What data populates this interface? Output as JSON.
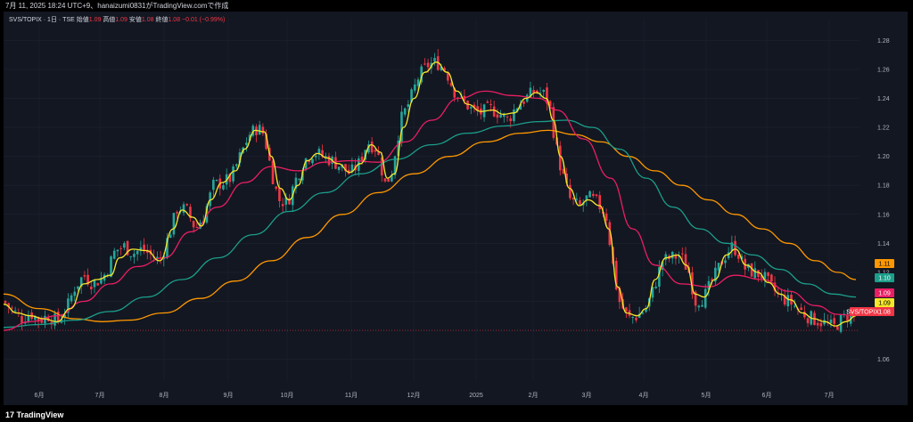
{
  "header": {
    "info_text": "7月 11, 2025 18:24 UTC+9、hanaizumi0831がTradingView.comで作成"
  },
  "legend": {
    "symbol": "SVS/TOPIX · 1日 · TSE",
    "open_label": "始値",
    "open_value": "1.09",
    "high_label": "高値",
    "high_value": "1.09",
    "low_label": "安値",
    "low_value": "1.08",
    "close_label": "終値",
    "close_value": "1.08",
    "change": "−0.01 (−0.99%)"
  },
  "footer": {
    "brand": "TradingView",
    "logo_mark": "17"
  },
  "colors": {
    "up": "#26a69a",
    "down": "#f23645",
    "ma_yellow": "#f5e72a",
    "ma_pink": "#e91e63",
    "ma_teal": "#1b9e8a",
    "ma_orange": "#ff9800",
    "bg": "#131722",
    "grid": "#1e2330"
  },
  "price_labels": [
    {
      "text": "1.11",
      "bg": "#ff9800",
      "fg": "#000000",
      "value": 1.11
    },
    {
      "text": "1.10",
      "bg": "#1b9e8a",
      "fg": "#ffffff",
      "value": 1.1
    },
    {
      "text": "1.09",
      "bg": "#e91e63",
      "fg": "#ffffff",
      "value": 1.09
    },
    {
      "text": "1.09",
      "bg": "#f5e72a",
      "fg": "#000000",
      "value": 1.086
    },
    {
      "text": "1.08",
      "bg": "#f23645",
      "fg": "#ffffff",
      "value": 1.08
    }
  ],
  "symbol_tag": "SVS/TOPIX",
  "chart_data": {
    "type": "candlestick",
    "y_axis": {
      "ticks": [
        "1.28",
        "1.26",
        "1.24",
        "1.22",
        "1.20",
        "1.18",
        "1.16",
        "1.14",
        "1.12",
        "1.10",
        "1.06"
      ],
      "range": [
        1.045,
        1.295
      ]
    },
    "x_axis": {
      "ticks": [
        "6月",
        "7月",
        "8月",
        "9月",
        "10月",
        "11月",
        "12月",
        "2025",
        "2月",
        "3月",
        "4月",
        "5月",
        "6月",
        "7月"
      ]
    },
    "close_path": [
      [
        0,
        1.1
      ],
      [
        10,
        1.094
      ],
      [
        20,
        1.088
      ],
      [
        30,
        1.092
      ],
      [
        40,
        1.087
      ],
      [
        50,
        1.09
      ],
      [
        60,
        1.086
      ],
      [
        70,
        1.094
      ],
      [
        80,
        1.11
      ],
      [
        90,
        1.118
      ],
      [
        100,
        1.112
      ],
      [
        110,
        1.116
      ],
      [
        115,
        1.12
      ],
      [
        125,
        1.135
      ],
      [
        135,
        1.138
      ],
      [
        145,
        1.133
      ],
      [
        155,
        1.136
      ],
      [
        165,
        1.132
      ],
      [
        175,
        1.128
      ],
      [
        185,
        1.145
      ],
      [
        195,
        1.165
      ],
      [
        205,
        1.163
      ],
      [
        215,
        1.15
      ],
      [
        225,
        1.16
      ],
      [
        235,
        1.18
      ],
      [
        245,
        1.182
      ],
      [
        255,
        1.185
      ],
      [
        265,
        1.2
      ],
      [
        275,
        1.215
      ],
      [
        285,
        1.22
      ],
      [
        292,
        1.215
      ],
      [
        300,
        1.19
      ],
      [
        308,
        1.17
      ],
      [
        318,
        1.168
      ],
      [
        328,
        1.185
      ],
      [
        338,
        1.198
      ],
      [
        348,
        1.203
      ],
      [
        358,
        1.2
      ],
      [
        368,
        1.197
      ],
      [
        378,
        1.193
      ],
      [
        388,
        1.188
      ],
      [
        398,
        1.195
      ],
      [
        408,
        1.21
      ],
      [
        418,
        1.205
      ],
      [
        428,
        1.18
      ],
      [
        435,
        1.19
      ],
      [
        445,
        1.225
      ],
      [
        455,
        1.238
      ],
      [
        465,
        1.255
      ],
      [
        475,
        1.263
      ],
      [
        485,
        1.265
      ],
      [
        495,
        1.26
      ],
      [
        505,
        1.245
      ],
      [
        515,
        1.238
      ],
      [
        525,
        1.232
      ],
      [
        535,
        1.23
      ],
      [
        545,
        1.233
      ],
      [
        555,
        1.23
      ],
      [
        565,
        1.225
      ],
      [
        575,
        1.235
      ],
      [
        585,
        1.24
      ],
      [
        595,
        1.245
      ],
      [
        605,
        1.243
      ],
      [
        612,
        1.235
      ],
      [
        618,
        1.21
      ],
      [
        625,
        1.19
      ],
      [
        635,
        1.17
      ],
      [
        645,
        1.165
      ],
      [
        655,
        1.172
      ],
      [
        665,
        1.168
      ],
      [
        675,
        1.16
      ],
      [
        685,
        1.115
      ],
      [
        690,
        1.1
      ],
      [
        700,
        1.088
      ],
      [
        710,
        1.09
      ],
      [
        720,
        1.095
      ],
      [
        728,
        1.108
      ],
      [
        738,
        1.128
      ],
      [
        748,
        1.13
      ],
      [
        758,
        1.132
      ],
      [
        768,
        1.12
      ],
      [
        775,
        1.1
      ],
      [
        785,
        1.103
      ],
      [
        795,
        1.115
      ],
      [
        805,
        1.128
      ],
      [
        815,
        1.138
      ],
      [
        822,
        1.135
      ],
      [
        830,
        1.123
      ],
      [
        840,
        1.12
      ],
      [
        850,
        1.118
      ],
      [
        860,
        1.11
      ],
      [
        870,
        1.103
      ],
      [
        880,
        1.1
      ],
      [
        890,
        1.095
      ],
      [
        900,
        1.09
      ],
      [
        910,
        1.087
      ],
      [
        920,
        1.085
      ],
      [
        930,
        1.082
      ],
      [
        940,
        1.088
      ],
      [
        950,
        1.092
      ],
      [
        955,
        1.088
      ]
    ],
    "ma_yellow": [
      [
        0,
        1.098
      ],
      [
        15,
        1.092
      ],
      [
        30,
        1.09
      ],
      [
        45,
        1.088
      ],
      [
        60,
        1.086
      ],
      [
        75,
        1.095
      ],
      [
        90,
        1.112
      ],
      [
        105,
        1.115
      ],
      [
        120,
        1.118
      ],
      [
        130,
        1.13
      ],
      [
        145,
        1.136
      ],
      [
        160,
        1.135
      ],
      [
        175,
        1.128
      ],
      [
        190,
        1.15
      ],
      [
        200,
        1.163
      ],
      [
        212,
        1.158
      ],
      [
        222,
        1.152
      ],
      [
        232,
        1.17
      ],
      [
        245,
        1.182
      ],
      [
        260,
        1.19
      ],
      [
        270,
        1.205
      ],
      [
        282,
        1.218
      ],
      [
        292,
        1.217
      ],
      [
        300,
        1.2
      ],
      [
        310,
        1.178
      ],
      [
        320,
        1.17
      ],
      [
        330,
        1.18
      ],
      [
        340,
        1.197
      ],
      [
        352,
        1.202
      ],
      [
        362,
        1.199
      ],
      [
        375,
        1.195
      ],
      [
        388,
        1.189
      ],
      [
        400,
        1.195
      ],
      [
        412,
        1.208
      ],
      [
        422,
        1.203
      ],
      [
        430,
        1.185
      ],
      [
        438,
        1.188
      ],
      [
        448,
        1.22
      ],
      [
        460,
        1.24
      ],
      [
        472,
        1.258
      ],
      [
        485,
        1.265
      ],
      [
        497,
        1.258
      ],
      [
        508,
        1.245
      ],
      [
        520,
        1.236
      ],
      [
        535,
        1.231
      ],
      [
        548,
        1.232
      ],
      [
        560,
        1.229
      ],
      [
        572,
        1.23
      ],
      [
        585,
        1.24
      ],
      [
        597,
        1.244
      ],
      [
        608,
        1.24
      ],
      [
        616,
        1.225
      ],
      [
        624,
        1.2
      ],
      [
        634,
        1.178
      ],
      [
        645,
        1.166
      ],
      [
        655,
        1.17
      ],
      [
        668,
        1.166
      ],
      [
        678,
        1.15
      ],
      [
        688,
        1.11
      ],
      [
        698,
        1.092
      ],
      [
        710,
        1.09
      ],
      [
        720,
        1.095
      ],
      [
        730,
        1.115
      ],
      [
        742,
        1.13
      ],
      [
        755,
        1.132
      ],
      [
        765,
        1.125
      ],
      [
        775,
        1.105
      ],
      [
        785,
        1.103
      ],
      [
        797,
        1.115
      ],
      [
        810,
        1.132
      ],
      [
        820,
        1.136
      ],
      [
        832,
        1.125
      ],
      [
        845,
        1.12
      ],
      [
        857,
        1.113
      ],
      [
        870,
        1.105
      ],
      [
        882,
        1.101
      ],
      [
        895,
        1.092
      ],
      [
        908,
        1.088
      ],
      [
        920,
        1.086
      ],
      [
        932,
        1.083
      ],
      [
        944,
        1.086
      ],
      [
        955,
        1.09
      ]
    ],
    "ma_pink": [
      [
        0,
        1.08
      ],
      [
        30,
        1.086
      ],
      [
        60,
        1.09
      ],
      [
        90,
        1.1
      ],
      [
        120,
        1.112
      ],
      [
        150,
        1.124
      ],
      [
        180,
        1.13
      ],
      [
        210,
        1.148
      ],
      [
        240,
        1.165
      ],
      [
        270,
        1.182
      ],
      [
        300,
        1.193
      ],
      [
        330,
        1.19
      ],
      [
        360,
        1.196
      ],
      [
        390,
        1.197
      ],
      [
        420,
        1.196
      ],
      [
        450,
        1.21
      ],
      [
        480,
        1.225
      ],
      [
        510,
        1.24
      ],
      [
        540,
        1.245
      ],
      [
        570,
        1.242
      ],
      [
        600,
        1.24
      ],
      [
        620,
        1.232
      ],
      [
        650,
        1.212
      ],
      [
        680,
        1.185
      ],
      [
        705,
        1.15
      ],
      [
        730,
        1.125
      ],
      [
        760,
        1.112
      ],
      [
        790,
        1.11
      ],
      [
        820,
        1.118
      ],
      [
        850,
        1.115
      ],
      [
        880,
        1.107
      ],
      [
        910,
        1.097
      ],
      [
        935,
        1.091
      ],
      [
        955,
        1.09
      ]
    ],
    "ma_teal": [
      [
        0,
        1.082
      ],
      [
        40,
        1.084
      ],
      [
        80,
        1.087
      ],
      [
        120,
        1.093
      ],
      [
        160,
        1.103
      ],
      [
        200,
        1.115
      ],
      [
        240,
        1.13
      ],
      [
        280,
        1.146
      ],
      [
        320,
        1.162
      ],
      [
        360,
        1.175
      ],
      [
        400,
        1.188
      ],
      [
        440,
        1.198
      ],
      [
        480,
        1.208
      ],
      [
        520,
        1.216
      ],
      [
        560,
        1.221
      ],
      [
        600,
        1.224
      ],
      [
        630,
        1.225
      ],
      [
        660,
        1.22
      ],
      [
        690,
        1.205
      ],
      [
        720,
        1.185
      ],
      [
        750,
        1.165
      ],
      [
        780,
        1.15
      ],
      [
        810,
        1.14
      ],
      [
        840,
        1.132
      ],
      [
        870,
        1.122
      ],
      [
        900,
        1.112
      ],
      [
        930,
        1.105
      ],
      [
        955,
        1.103
      ]
    ],
    "ma_orange": [
      [
        0,
        1.105
      ],
      [
        40,
        1.095
      ],
      [
        80,
        1.088
      ],
      [
        110,
        1.086
      ],
      [
        140,
        1.087
      ],
      [
        180,
        1.092
      ],
      [
        220,
        1.102
      ],
      [
        260,
        1.114
      ],
      [
        300,
        1.128
      ],
      [
        340,
        1.144
      ],
      [
        380,
        1.16
      ],
      [
        420,
        1.175
      ],
      [
        460,
        1.188
      ],
      [
        500,
        1.2
      ],
      [
        540,
        1.21
      ],
      [
        580,
        1.216
      ],
      [
        610,
        1.218
      ],
      [
        640,
        1.215
      ],
      [
        670,
        1.21
      ],
      [
        700,
        1.2
      ],
      [
        730,
        1.19
      ],
      [
        760,
        1.18
      ],
      [
        790,
        1.17
      ],
      [
        820,
        1.16
      ],
      [
        850,
        1.15
      ],
      [
        880,
        1.14
      ],
      [
        910,
        1.128
      ],
      [
        935,
        1.12
      ],
      [
        955,
        1.115
      ]
    ],
    "last_price": 1.08
  }
}
